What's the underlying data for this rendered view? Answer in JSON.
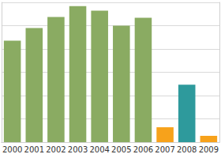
{
  "chart_data": {
    "type": "bar",
    "categories": [
      "2000",
      "2001",
      "2002",
      "2003",
      "2004",
      "2005",
      "2006",
      "2007",
      "2008",
      "2009"
    ],
    "values": [
      4.36,
      4.9,
      5.37,
      5.84,
      5.64,
      5.0,
      5.34,
      0.64,
      2.47,
      0.27
    ],
    "colors": [
      "#8aab62",
      "#8aab62",
      "#8aab62",
      "#8aab62",
      "#8aab62",
      "#8aab62",
      "#8aab62",
      "#f7a21b",
      "#2e9a9c",
      "#f7a21b"
    ],
    "ylim": [
      0,
      6
    ],
    "yticks": [
      0,
      1,
      2,
      3,
      4,
      5,
      6
    ],
    "grid": true,
    "tick_labels": "x"
  }
}
